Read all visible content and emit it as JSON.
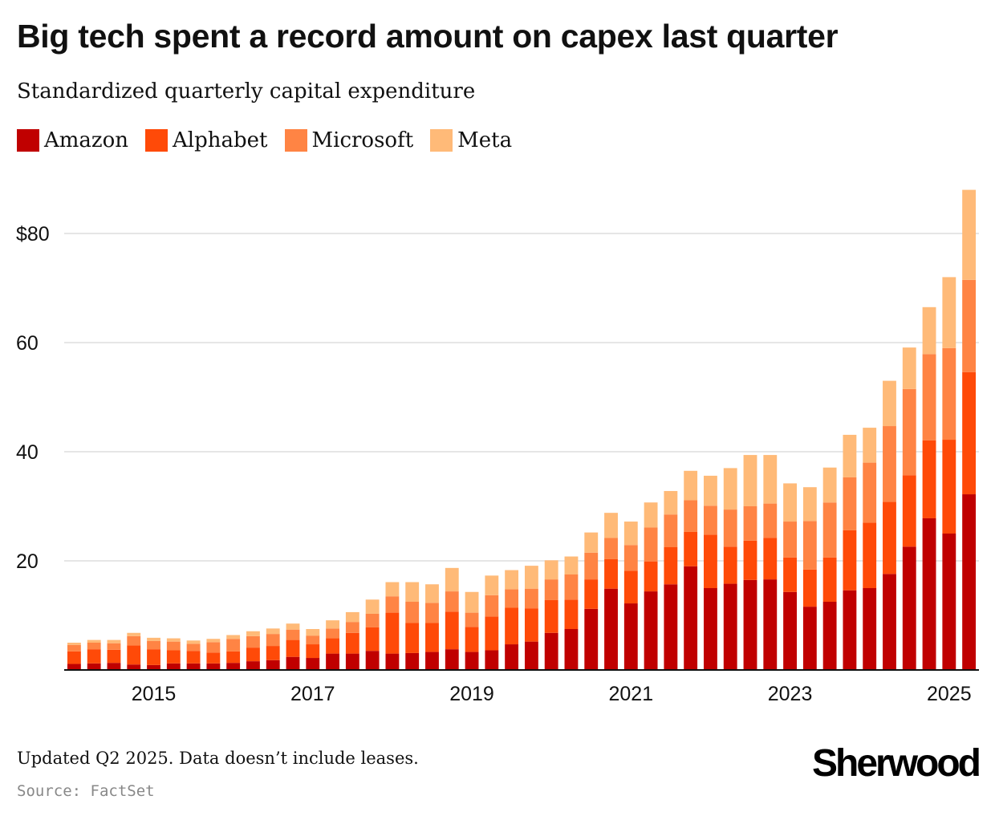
{
  "title": "Big tech spent a record amount on capex last quarter",
  "subtitle": "Standardized quarterly capital expenditure",
  "footnote": "Updated Q2 2025. Data doesn’t include leases.",
  "source": "Source: FactSet",
  "brand": "Sherwood",
  "colors": {
    "amazon": "#c00000",
    "alphabet": "#ff4a08",
    "microsoft": "#ff8444",
    "meta": "#ffba78",
    "grid": "#dddddd",
    "axis": "#111111"
  },
  "legend": [
    {
      "label": "Amazon",
      "color": "#c00000"
    },
    {
      "label": "Alphabet",
      "color": "#ff4a08"
    },
    {
      "label": "Microsoft",
      "color": "#ff8444"
    },
    {
      "label": "Meta",
      "color": "#ffba78"
    }
  ],
  "chart_data": {
    "type": "bar",
    "stacked": true,
    "title": "Big tech spent a record amount on capex last quarter",
    "subtitle": "Standardized quarterly capital expenditure",
    "xlabel": "",
    "ylabel": "",
    "ylim": [
      0,
      90
    ],
    "yticks": [
      {
        "value": 20,
        "label": "20"
      },
      {
        "value": 40,
        "label": "40"
      },
      {
        "value": 60,
        "label": "60"
      },
      {
        "value": 80,
        "label": "$80"
      }
    ],
    "xticks": [
      {
        "index": 4,
        "label": "2015"
      },
      {
        "index": 12,
        "label": "2017"
      },
      {
        "index": 20,
        "label": "2019"
      },
      {
        "index": 28,
        "label": "2021"
      },
      {
        "index": 36,
        "label": "2023"
      },
      {
        "index": 44,
        "label": "2025"
      }
    ],
    "grid": true,
    "legend_position": "top-left",
    "categories": [
      "Q1 2014",
      "Q2 2014",
      "Q3 2014",
      "Q4 2014",
      "Q1 2015",
      "Q2 2015",
      "Q3 2015",
      "Q4 2015",
      "Q1 2016",
      "Q2 2016",
      "Q3 2016",
      "Q4 2016",
      "Q1 2017",
      "Q2 2017",
      "Q3 2017",
      "Q4 2017",
      "Q1 2018",
      "Q2 2018",
      "Q3 2018",
      "Q4 2018",
      "Q1 2019",
      "Q2 2019",
      "Q3 2019",
      "Q4 2019",
      "Q1 2020",
      "Q2 2020",
      "Q3 2020",
      "Q4 2020",
      "Q1 2021",
      "Q2 2021",
      "Q3 2021",
      "Q4 2021",
      "Q1 2022",
      "Q2 2022",
      "Q3 2022",
      "Q4 2022",
      "Q1 2023",
      "Q2 2023",
      "Q3 2023",
      "Q4 2023",
      "Q1 2024",
      "Q2 2024",
      "Q3 2024",
      "Q4 2024",
      "Q1 2025",
      "Q2 2025"
    ],
    "series": [
      {
        "name": "Amazon",
        "values": [
          1.1,
          1.2,
          1.3,
          1.0,
          0.9,
          1.2,
          1.2,
          1.2,
          1.3,
          1.6,
          1.8,
          2.4,
          2.2,
          3.0,
          3.0,
          3.5,
          3.0,
          3.1,
          3.3,
          3.8,
          3.3,
          3.6,
          4.7,
          5.2,
          6.8,
          7.5,
          11.2,
          14.9,
          12.2,
          14.4,
          15.7,
          19.0,
          15.0,
          15.8,
          16.5,
          16.6,
          14.3,
          11.6,
          12.5,
          14.6,
          15.0,
          17.6,
          22.6,
          27.8,
          25.0,
          32.2
        ]
      },
      {
        "name": "Alphabet",
        "values": [
          2.3,
          2.6,
          2.4,
          3.5,
          2.9,
          2.4,
          2.3,
          2.0,
          2.1,
          2.5,
          2.6,
          3.1,
          2.5,
          2.8,
          3.8,
          4.3,
          7.5,
          5.5,
          5.3,
          6.9,
          4.6,
          6.2,
          6.7,
          6.1,
          6.0,
          5.4,
          5.4,
          5.4,
          6.0,
          5.5,
          6.8,
          6.3,
          9.8,
          6.8,
          7.2,
          7.6,
          6.3,
          6.8,
          8.1,
          11.0,
          12.0,
          13.2,
          13.1,
          14.3,
          17.2,
          22.4
        ]
      },
      {
        "name": "Microsoft",
        "values": [
          1.2,
          1.2,
          1.2,
          1.7,
          1.5,
          1.6,
          1.3,
          1.9,
          2.3,
          2.1,
          2.2,
          1.9,
          1.6,
          1.8,
          2.0,
          2.5,
          3.0,
          3.9,
          3.7,
          3.7,
          2.6,
          3.9,
          3.4,
          3.6,
          3.8,
          4.6,
          4.9,
          3.9,
          4.7,
          6.2,
          6.0,
          5.8,
          5.3,
          6.8,
          6.3,
          6.3,
          6.6,
          8.9,
          10.1,
          9.7,
          11.0,
          13.9,
          15.8,
          15.8,
          16.8,
          16.9
        ]
      },
      {
        "name": "Meta",
        "values": [
          0.4,
          0.5,
          0.6,
          0.6,
          0.6,
          0.6,
          0.6,
          0.6,
          0.7,
          0.9,
          1.0,
          1.1,
          1.2,
          1.5,
          1.8,
          2.6,
          2.6,
          3.6,
          3.4,
          4.3,
          3.8,
          3.6,
          3.5,
          4.2,
          3.5,
          3.3,
          3.7,
          4.6,
          4.3,
          4.6,
          4.3,
          5.4,
          5.5,
          7.6,
          9.4,
          8.9,
          7.0,
          6.2,
          6.4,
          7.8,
          6.4,
          8.3,
          7.6,
          8.6,
          13.0,
          16.5
        ]
      }
    ]
  }
}
